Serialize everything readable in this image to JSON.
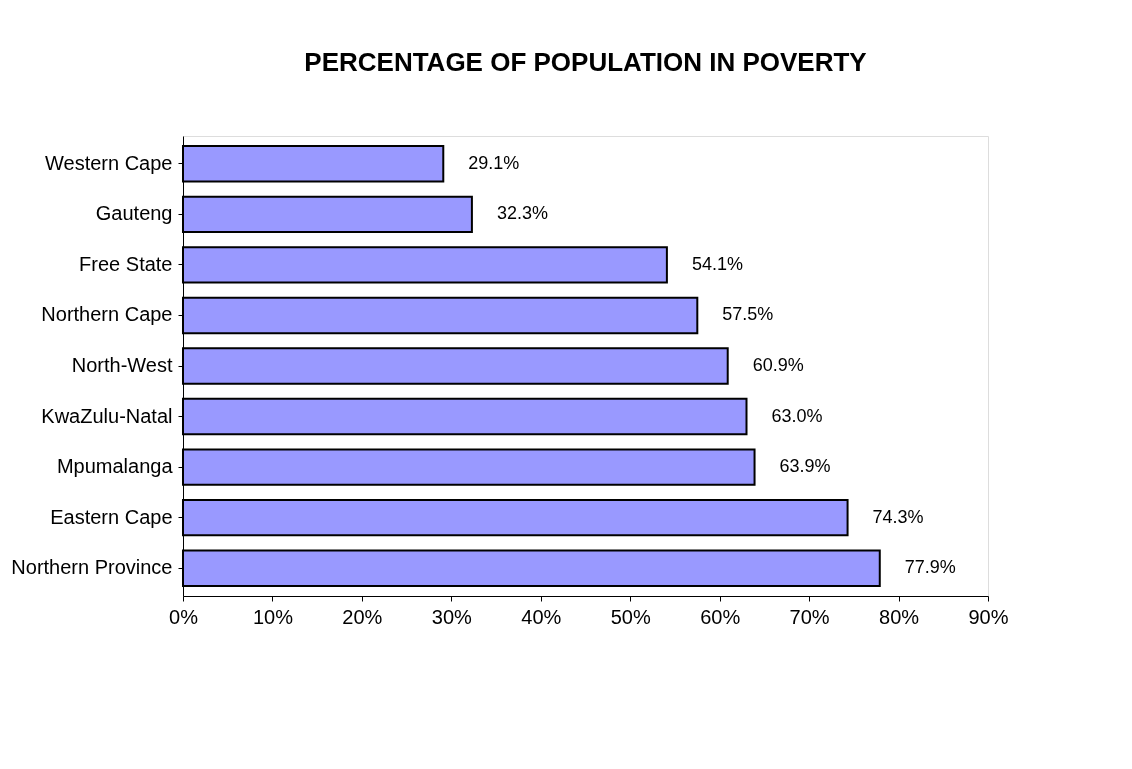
{
  "chart_data": {
    "type": "bar",
    "orientation": "horizontal",
    "title": "PERCENTAGE OF POPULATION  IN POVERTY",
    "categories": [
      "Western Cape",
      "Gauteng",
      "Free State",
      "Northern Cape",
      "North-West",
      "KwaZulu-Natal",
      "Mpumalanga",
      "Eastern Cape",
      "Northern Province"
    ],
    "values": [
      29.1,
      32.3,
      54.1,
      57.5,
      60.9,
      63.0,
      63.9,
      74.3,
      77.9
    ],
    "value_labels": [
      "29.1%",
      "32.3%",
      "54.1%",
      "57.5%",
      "60.9%",
      "63.0%",
      "63.9%",
      "74.3%",
      "77.9%"
    ],
    "color": "#9999ff",
    "xlim": [
      0,
      90
    ],
    "xticks": [
      {
        "value": 0,
        "label": "0%"
      },
      {
        "value": 10,
        "label": "10%"
      },
      {
        "value": 20,
        "label": "20%"
      },
      {
        "value": 30,
        "label": "30%"
      },
      {
        "value": 40,
        "label": "40%"
      },
      {
        "value": 50,
        "label": "50%"
      },
      {
        "value": 60,
        "label": "60%"
      },
      {
        "value": 70,
        "label": "70%"
      },
      {
        "value": 80,
        "label": "80%"
      },
      {
        "value": 90,
        "label": "90%"
      }
    ],
    "grid": false
  }
}
